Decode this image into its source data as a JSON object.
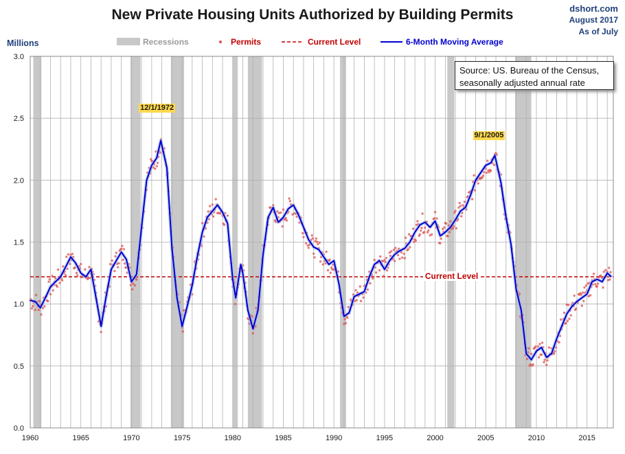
{
  "header": {
    "title": "New Private Housing Units Authorized by Building Permits",
    "source_site": "dshort.com",
    "date_line1": "August 2017",
    "date_line2": "As of July"
  },
  "y_axis_unit": "Millions",
  "source_note_line1": "Source: US. Bureau of the Census,",
  "source_note_line2": "seasonally adjusted annual rate",
  "annotations": {
    "peak1": "12/1/1972",
    "peak2": "9/1/2005",
    "current": "Current Level"
  },
  "colors": {
    "recession": "#c8c8c8",
    "permits": "#d9534f",
    "current_level": "#c00000",
    "moving_average": "#0000cc",
    "grid": "#b0b0b0",
    "text_blue": "#1f3f7a"
  },
  "chart_data": {
    "type": "line",
    "xlim": [
      1960,
      2017.6
    ],
    "ylim": [
      0,
      3.0
    ],
    "x_ticks": [
      1960,
      1965,
      1970,
      1975,
      1980,
      1985,
      1990,
      1995,
      2000,
      2005,
      2010,
      2015
    ],
    "y_ticks": [
      0.0,
      0.5,
      1.0,
      1.5,
      2.0,
      2.5,
      3.0
    ],
    "grid": "vertical lines each year, horizontal lines each 0.5",
    "legend": [
      "Recessions",
      "Permits",
      "Current Level",
      "6-Month Moving Average"
    ],
    "legend_position": "top",
    "current_level": 1.22,
    "recessions": [
      [
        1960.3,
        1961.1
      ],
      [
        1969.9,
        1970.9
      ],
      [
        1973.9,
        1975.2
      ],
      [
        1980.0,
        1980.5
      ],
      [
        1981.5,
        1982.9
      ],
      [
        1990.6,
        1991.2
      ],
      [
        2001.2,
        2001.9
      ],
      [
        2007.9,
        2009.5
      ]
    ],
    "series": [
      {
        "name": "6-Month Moving Average",
        "x": [
          1960.0,
          1960.5,
          1961.0,
          1961.5,
          1962.0,
          1962.5,
          1963.0,
          1963.5,
          1964.0,
          1964.5,
          1965.0,
          1965.5,
          1966.0,
          1966.5,
          1967.0,
          1967.5,
          1968.0,
          1968.5,
          1969.0,
          1969.5,
          1970.0,
          1970.5,
          1971.0,
          1971.5,
          1972.0,
          1972.5,
          1972.9,
          1973.5,
          1974.0,
          1974.5,
          1975.0,
          1975.5,
          1976.0,
          1976.5,
          1977.0,
          1977.5,
          1978.0,
          1978.5,
          1979.0,
          1979.5,
          1980.0,
          1980.3,
          1980.8,
          1981.0,
          1981.5,
          1982.0,
          1982.5,
          1983.0,
          1983.5,
          1984.0,
          1984.5,
          1985.0,
          1985.5,
          1986.0,
          1986.5,
          1987.0,
          1987.5,
          1988.0,
          1988.5,
          1989.0,
          1989.5,
          1990.0,
          1990.5,
          1991.0,
          1991.5,
          1992.0,
          1992.5,
          1993.0,
          1993.5,
          1994.0,
          1994.5,
          1995.0,
          1995.5,
          1996.0,
          1996.5,
          1997.0,
          1997.5,
          1998.0,
          1998.5,
          1999.0,
          1999.5,
          2000.0,
          2000.5,
          2001.0,
          2001.5,
          2002.0,
          2002.5,
          2003.0,
          2003.5,
          2004.0,
          2004.5,
          2005.0,
          2005.5,
          2005.9,
          2006.5,
          2007.0,
          2007.5,
          2008.0,
          2008.5,
          2009.0,
          2009.5,
          2010.0,
          2010.5,
          2011.0,
          2011.5,
          2012.0,
          2012.5,
          2013.0,
          2013.5,
          2014.0,
          2014.5,
          2015.0,
          2015.5,
          2016.0,
          2016.5,
          2017.0,
          2017.4
        ],
        "values": [
          1.03,
          1.02,
          0.97,
          1.05,
          1.14,
          1.18,
          1.22,
          1.3,
          1.38,
          1.33,
          1.25,
          1.22,
          1.28,
          1.05,
          0.82,
          1.06,
          1.28,
          1.35,
          1.42,
          1.36,
          1.18,
          1.24,
          1.62,
          2.0,
          2.12,
          2.18,
          2.32,
          2.1,
          1.45,
          1.05,
          0.82,
          0.98,
          1.15,
          1.38,
          1.58,
          1.7,
          1.75,
          1.8,
          1.74,
          1.65,
          1.2,
          1.05,
          1.32,
          1.25,
          0.95,
          0.8,
          0.95,
          1.4,
          1.7,
          1.78,
          1.66,
          1.7,
          1.77,
          1.8,
          1.72,
          1.62,
          1.52,
          1.46,
          1.44,
          1.38,
          1.32,
          1.35,
          1.16,
          0.9,
          0.93,
          1.06,
          1.08,
          1.1,
          1.22,
          1.32,
          1.35,
          1.28,
          1.35,
          1.4,
          1.43,
          1.45,
          1.5,
          1.58,
          1.64,
          1.66,
          1.62,
          1.67,
          1.55,
          1.58,
          1.62,
          1.68,
          1.75,
          1.78,
          1.88,
          2.0,
          2.06,
          2.12,
          2.14,
          2.2,
          1.98,
          1.7,
          1.48,
          1.12,
          0.95,
          0.6,
          0.55,
          0.62,
          0.65,
          0.57,
          0.6,
          0.72,
          0.82,
          0.92,
          0.98,
          1.02,
          1.05,
          1.08,
          1.18,
          1.2,
          1.18,
          1.25,
          1.22
        ]
      }
    ]
  }
}
